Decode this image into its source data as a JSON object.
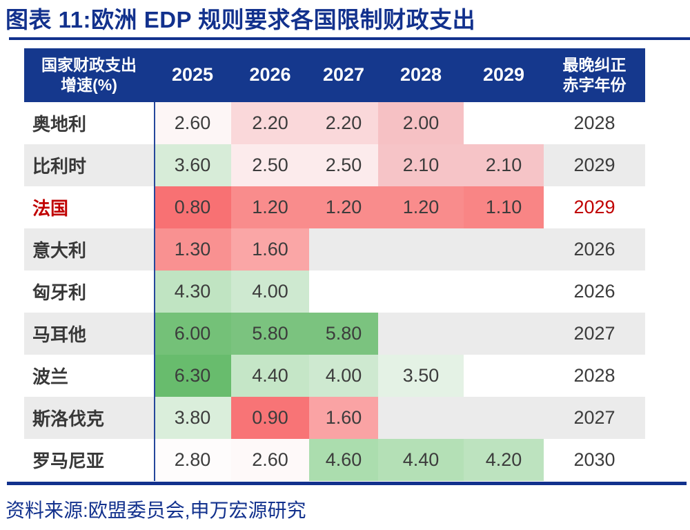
{
  "page": {
    "title": "图表 11:欧洲 EDP 规则要求各国限制财政支出",
    "source": "资料来源:欧盟委员会,申万宏源研究"
  },
  "colors": {
    "accent_blue": "#12318D",
    "header_bg": "#15388D",
    "header_text": "#FFFFFF",
    "row_alt_bg": "#EBEBEB",
    "row_bg": "#FFFFFF",
    "value_text": "#3C3C3C",
    "france_red": "#C00000",
    "column_divider_blue": "#24469B",
    "heat_red_strong": "#F87173",
    "heat_green_strong": "#68BC6D"
  },
  "chart_data": {
    "type": "table",
    "title": "图表 11:欧洲 EDP 规则要求各国限制财政支出",
    "header": {
      "first_line1": "国家财政支出",
      "first_line2": "增速(%)",
      "years": [
        "2025",
        "2026",
        "2027",
        "2028",
        "2029"
      ],
      "last_line1": "最晚纠正",
      "last_line2": "赤字年份"
    },
    "columns": [
      "国家财政支出增速(%)",
      "2025",
      "2026",
      "2027",
      "2028",
      "2029",
      "最晚纠正赤字年份"
    ],
    "rows": [
      {
        "country": "奥地利",
        "row_bg": "#FFFFFF",
        "highlight": "",
        "cells": [
          {
            "v": "2.60",
            "bg": "#FDF6F6"
          },
          {
            "v": "2.20",
            "bg": "#FAD8DA"
          },
          {
            "v": "2.20",
            "bg": "#FAD8DA"
          },
          {
            "v": "2.00",
            "bg": "#F6C1C4"
          },
          {
            "v": "",
            "bg": ""
          }
        ],
        "deadline": "2028"
      },
      {
        "country": "比利时",
        "row_bg": "#EBEBEB",
        "highlight": "",
        "cells": [
          {
            "v": "3.60",
            "bg": "#D7ECD8"
          },
          {
            "v": "2.50",
            "bg": "#FCEBEC"
          },
          {
            "v": "2.50",
            "bg": "#FCEBEC"
          },
          {
            "v": "2.10",
            "bg": "#F6C4C7"
          },
          {
            "v": "2.10",
            "bg": "#F6C4C7"
          }
        ],
        "deadline": "2029"
      },
      {
        "country": "法国",
        "row_bg": "#FFFFFF",
        "highlight": "#C00000",
        "cells": [
          {
            "v": "0.80",
            "bg": "#F87173"
          },
          {
            "v": "1.20",
            "bg": "#F98C8C"
          },
          {
            "v": "1.20",
            "bg": "#F98C8C"
          },
          {
            "v": "1.20",
            "bg": "#F98C8C"
          },
          {
            "v": "1.10",
            "bg": "#F98585"
          }
        ],
        "deadline": "2029"
      },
      {
        "country": "意大利",
        "row_bg": "#EBEBEB",
        "highlight": "",
        "cells": [
          {
            "v": "1.30",
            "bg": "#F99191"
          },
          {
            "v": "1.60",
            "bg": "#FAA6A6"
          },
          {
            "v": "",
            "bg": ""
          },
          {
            "v": "",
            "bg": ""
          },
          {
            "v": "",
            "bg": ""
          }
        ],
        "deadline": "2026"
      },
      {
        "country": "匈牙利",
        "row_bg": "#FFFFFF",
        "highlight": "",
        "cells": [
          {
            "v": "4.30",
            "bg": "#C0E4C2"
          },
          {
            "v": "4.00",
            "bg": "#CEE9D0"
          },
          {
            "v": "",
            "bg": ""
          },
          {
            "v": "",
            "bg": ""
          },
          {
            "v": "",
            "bg": ""
          }
        ],
        "deadline": "2026"
      },
      {
        "country": "马耳他",
        "row_bg": "#EBEBEB",
        "highlight": "",
        "cells": [
          {
            "v": "6.00",
            "bg": "#74C178"
          },
          {
            "v": "5.80",
            "bg": "#7BC37F"
          },
          {
            "v": "5.80",
            "bg": "#7BC37F"
          },
          {
            "v": "",
            "bg": ""
          },
          {
            "v": "",
            "bg": ""
          }
        ],
        "deadline": "2027"
      },
      {
        "country": "波兰",
        "row_bg": "#FFFFFF",
        "highlight": "",
        "cells": [
          {
            "v": "6.30",
            "bg": "#68BC6D"
          },
          {
            "v": "4.40",
            "bg": "#C5E6C7"
          },
          {
            "v": "4.00",
            "bg": "#CEE9D0"
          },
          {
            "v": "3.50",
            "bg": "#E4F2E5"
          },
          {
            "v": "",
            "bg": ""
          }
        ],
        "deadline": "2028"
      },
      {
        "country": "斯洛伐克",
        "row_bg": "#EBEBEB",
        "highlight": "",
        "cells": [
          {
            "v": "3.80",
            "bg": "#DAEEDB"
          },
          {
            "v": "0.90",
            "bg": "#F87476"
          },
          {
            "v": "1.60",
            "bg": "#FAA3A4"
          },
          {
            "v": "",
            "bg": ""
          },
          {
            "v": "",
            "bg": ""
          }
        ],
        "deadline": "2027"
      },
      {
        "country": "罗马尼亚",
        "row_bg": "#FFFFFF",
        "highlight": "",
        "cells": [
          {
            "v": "2.80",
            "bg": "#FEFCFC"
          },
          {
            "v": "2.60",
            "bg": "#FEF9F9"
          },
          {
            "v": "4.60",
            "bg": "#ABDDAE"
          },
          {
            "v": "4.40",
            "bg": "#B4E0B6"
          },
          {
            "v": "4.20",
            "bg": "#BDE3BF"
          }
        ],
        "deadline": "2030"
      }
    ]
  }
}
